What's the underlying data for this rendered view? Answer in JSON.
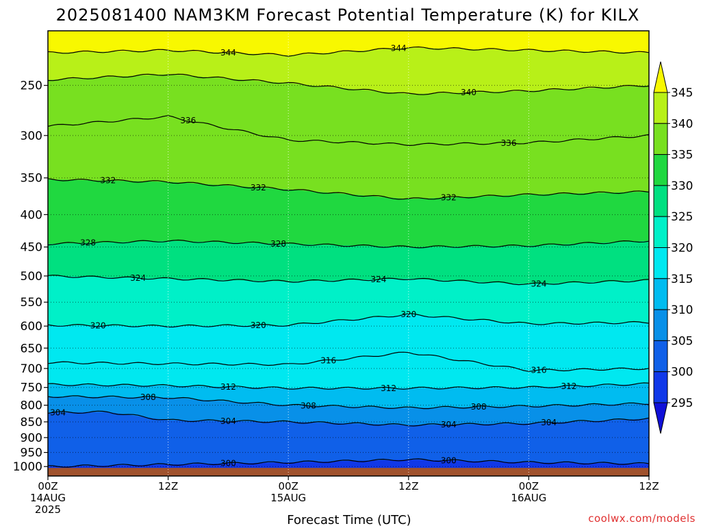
{
  "chart_data": {
    "type": "heatmap",
    "title": "2025081400 NAM3KM Forecast Potential Temperature (K) for KILX",
    "xlabel": "Forecast Time (UTC)",
    "ylabel": "",
    "x_ticks": [
      {
        "hour": 0,
        "lines": [
          "00Z",
          "14AUG",
          "2025"
        ]
      },
      {
        "hour": 12,
        "lines": [
          "12Z"
        ]
      },
      {
        "hour": 24,
        "lines": [
          "00Z",
          "15AUG"
        ]
      },
      {
        "hour": 36,
        "lines": [
          "12Z"
        ]
      },
      {
        "hour": 48,
        "lines": [
          "00Z",
          "16AUG"
        ]
      },
      {
        "hour": 60,
        "lines": [
          "12Z"
        ]
      }
    ],
    "xlim": [
      0,
      60
    ],
    "y_ticks": [
      250,
      300,
      350,
      400,
      450,
      500,
      550,
      600,
      650,
      700,
      750,
      800,
      850,
      900,
      950,
      1000
    ],
    "ylim": [
      1035,
      205
    ],
    "y_scale": "log",
    "colorbar": {
      "levels": [
        295,
        300,
        305,
        310,
        315,
        320,
        325,
        330,
        335,
        340,
        345
      ],
      "labels": [
        "295",
        "300",
        "305",
        "310",
        "315",
        "320",
        "325",
        "330",
        "335",
        "340",
        "345"
      ],
      "colors": [
        "#1010d8",
        "#1038e8",
        "#1060e8",
        "#0890e8",
        "#00bcf0",
        "#00e8f0",
        "#00f0c8",
        "#00e080",
        "#20d840",
        "#78e020",
        "#b8f018",
        "#f8f800"
      ]
    },
    "isentropes": [
      {
        "theta": 300,
        "p": [
          [
            0,
            1000
          ],
          [
            24,
            985
          ],
          [
            36,
            975
          ],
          [
            48,
            985
          ],
          [
            60,
            990
          ]
        ],
        "labels": [
          {
            "x": 18,
            "text": "300"
          },
          {
            "x": 40,
            "text": "300"
          }
        ]
      },
      {
        "theta": 304,
        "p": [
          [
            0,
            822
          ],
          [
            6,
            820
          ],
          [
            12,
            845
          ],
          [
            24,
            850
          ],
          [
            36,
            860
          ],
          [
            48,
            855
          ],
          [
            60,
            840
          ]
        ],
        "labels": [
          {
            "x": 1,
            "text": "304"
          },
          {
            "x": 18,
            "text": "304"
          },
          {
            "x": 40,
            "text": "304"
          },
          {
            "x": 50,
            "text": "304"
          }
        ]
      },
      {
        "theta": 308,
        "p": [
          [
            0,
            775
          ],
          [
            12,
            778
          ],
          [
            24,
            800
          ],
          [
            36,
            808
          ],
          [
            48,
            803
          ],
          [
            60,
            795
          ]
        ],
        "labels": [
          {
            "x": 10,
            "text": "308"
          },
          {
            "x": 26,
            "text": "308"
          },
          {
            "x": 43,
            "text": "308"
          }
        ]
      },
      {
        "theta": 312,
        "p": [
          [
            0,
            742
          ],
          [
            12,
            745
          ],
          [
            24,
            752
          ],
          [
            36,
            752
          ],
          [
            48,
            750
          ],
          [
            60,
            740
          ]
        ],
        "labels": [
          {
            "x": 18,
            "text": "312"
          },
          {
            "x": 34,
            "text": "312"
          },
          {
            "x": 52,
            "text": "312"
          }
        ]
      },
      {
        "theta": 316,
        "p": [
          [
            0,
            685
          ],
          [
            12,
            688
          ],
          [
            24,
            690
          ],
          [
            36,
            660
          ],
          [
            48,
            705
          ],
          [
            60,
            700
          ]
        ],
        "labels": [
          {
            "x": 28,
            "text": "316"
          },
          {
            "x": 49,
            "text": "316"
          }
        ]
      },
      {
        "theta": 320,
        "p": [
          [
            0,
            598
          ],
          [
            12,
            600
          ],
          [
            24,
            598
          ],
          [
            36,
            575
          ],
          [
            48,
            595
          ],
          [
            60,
            592
          ]
        ],
        "labels": [
          {
            "x": 5,
            "text": "320"
          },
          {
            "x": 21,
            "text": "320"
          },
          {
            "x": 36,
            "text": "320"
          }
        ]
      },
      {
        "theta": 324,
        "p": [
          [
            0,
            500
          ],
          [
            12,
            505
          ],
          [
            24,
            510
          ],
          [
            36,
            505
          ],
          [
            48,
            515
          ],
          [
            60,
            508
          ]
        ],
        "labels": [
          {
            "x": 9,
            "text": "324"
          },
          {
            "x": 33,
            "text": "324"
          },
          {
            "x": 49,
            "text": "324"
          }
        ]
      },
      {
        "theta": 328,
        "p": [
          [
            0,
            445
          ],
          [
            12,
            440
          ],
          [
            24,
            445
          ],
          [
            36,
            450
          ],
          [
            48,
            448
          ],
          [
            60,
            440
          ]
        ],
        "labels": [
          {
            "x": 4,
            "text": "328"
          },
          {
            "x": 23,
            "text": "328"
          }
        ]
      },
      {
        "theta": 332,
        "p": [
          [
            0,
            352
          ],
          [
            12,
            355
          ],
          [
            24,
            365
          ],
          [
            36,
            378
          ],
          [
            48,
            372
          ],
          [
            60,
            368
          ]
        ],
        "labels": [
          {
            "x": 6,
            "text": "332"
          },
          {
            "x": 21,
            "text": "332"
          },
          {
            "x": 40,
            "text": "332"
          }
        ]
      },
      {
        "theta": 336,
        "p": [
          [
            0,
            290
          ],
          [
            12,
            280
          ],
          [
            24,
            305
          ],
          [
            36,
            310
          ],
          [
            48,
            308
          ],
          [
            60,
            300
          ]
        ],
        "labels": [
          {
            "x": 14,
            "text": "336"
          },
          {
            "x": 46,
            "text": "336"
          }
        ]
      },
      {
        "theta": 340,
        "p": [
          [
            0,
            245
          ],
          [
            12,
            240
          ],
          [
            24,
            248
          ],
          [
            36,
            258
          ],
          [
            48,
            255
          ],
          [
            60,
            250
          ]
        ],
        "labels": [
          {
            "x": 42,
            "text": "340"
          }
        ]
      },
      {
        "theta": 344,
        "p": [
          [
            0,
            222
          ],
          [
            12,
            220
          ],
          [
            24,
            224
          ],
          [
            36,
            218
          ],
          [
            48,
            220
          ],
          [
            60,
            222
          ]
        ],
        "labels": [
          {
            "x": 18,
            "text": "344"
          },
          {
            "x": 35,
            "text": "344"
          }
        ]
      }
    ]
  },
  "credit": "coolwx.com/models"
}
